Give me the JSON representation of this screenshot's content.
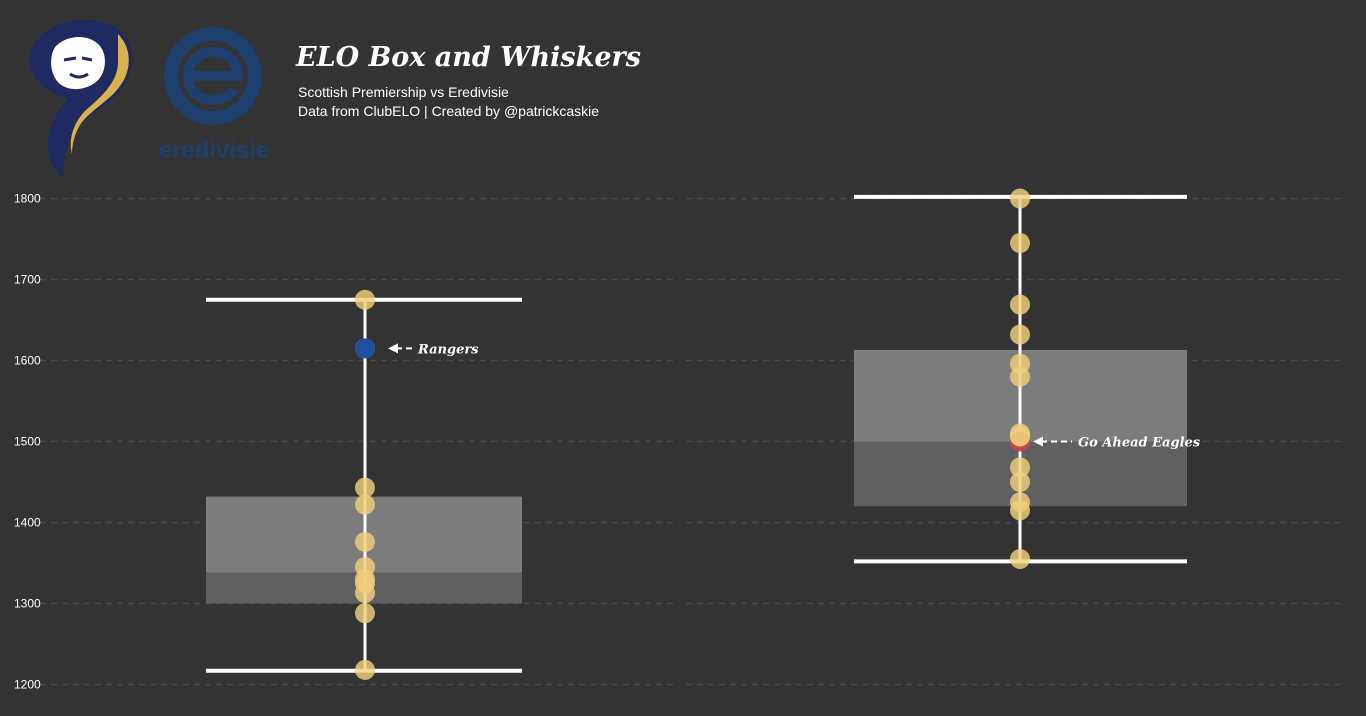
{
  "header": {
    "title": "ELO Box and Whiskers",
    "subtitle": "Scottish Premiership vs Eredivisie",
    "credit": "Data from ClubELO | Created by @patrickcaskie"
  },
  "logos": {
    "eredivisie_wordmark": "eredivisie"
  },
  "colors": {
    "background": "#333333",
    "point": "#f0cf7a",
    "rangers": "#1d4fa0",
    "go_ahead_eagles": "#c0454f",
    "box_upper": "#7c7c7c",
    "box_lower": "#606060",
    "whisker": "#ffffff"
  },
  "chart_data": {
    "type": "box",
    "ylim": [
      1190,
      1815
    ],
    "yticks": [
      1200,
      1300,
      1400,
      1500,
      1600,
      1700,
      1800
    ],
    "grid": true,
    "series": [
      {
        "whisker_low": 1217,
        "q1": 1300,
        "median": 1338,
        "q3": 1432,
        "whisker_high": 1675,
        "points": [
          1675,
          1615,
          1443,
          1422,
          1376,
          1345,
          1330,
          1325,
          1313,
          1288,
          1218
        ],
        "highlight": {
          "value": 1615,
          "label": "Rangers",
          "color": "#1d4fa0"
        }
      },
      {
        "whisker_low": 1352,
        "q1": 1420,
        "median": 1500,
        "q3": 1613,
        "whisker_high": 1802,
        "points": [
          1800,
          1745,
          1669,
          1632,
          1596,
          1580,
          1510,
          1468,
          1450,
          1425,
          1415,
          1355
        ],
        "highlight": {
          "value": 1500,
          "label": "Go Ahead Eagles",
          "color": "#c0454f"
        }
      }
    ]
  }
}
